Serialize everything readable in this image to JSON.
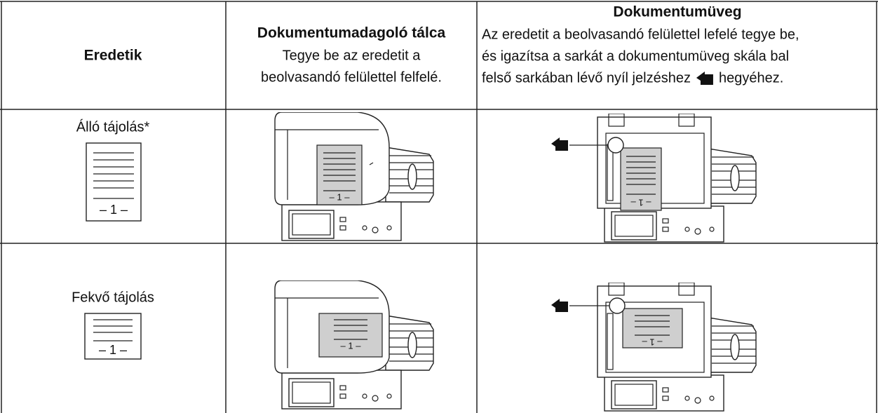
{
  "header": {
    "originals": "Eredetik",
    "feeder": {
      "title": "Dokumentumadagoló tálca",
      "lines": [
        "Tegye be az eredetit a",
        "beolvasandó felülettel felfelé."
      ]
    },
    "glass": {
      "title": "Dokumentumüveg",
      "lines": [
        "Az eredetit a beolvasandó felülettel lefelé tegye be,",
        "és igazítsa a sarkát a dokumentumüveg skála bal"
      ],
      "last_before_icon": "felső sarkában lévő nyíl jelzéshez",
      "last_after_icon": "hegyéhez."
    }
  },
  "rows": [
    {
      "label": "Álló tájolás*"
    },
    {
      "label": "Fekvő tájolás"
    }
  ],
  "page_mark": "– 1 –"
}
